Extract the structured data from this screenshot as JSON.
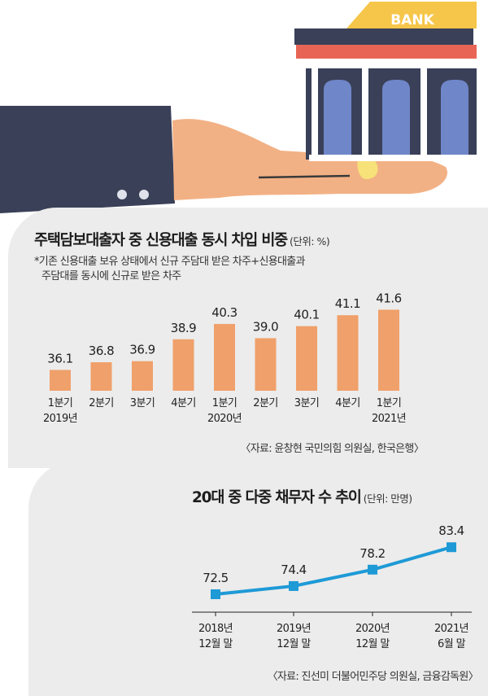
{
  "chart_data": [
    {
      "type": "bar",
      "title": "주택담보대출자 중 신용대출 동시 차입 비중",
      "unit": "(단위: %)",
      "note": [
        "*기존 신용대출 보유 상태에서 신규 주담대 받은 차주+신용대출과",
        "주담대를 동시에 신규로 받은 차주"
      ],
      "categories": [
        [
          "1분기",
          "2019년"
        ],
        [
          "2분기",
          ""
        ],
        [
          "3분기",
          ""
        ],
        [
          "4분기",
          ""
        ],
        [
          "1분기",
          "2020년"
        ],
        [
          "2분기",
          ""
        ],
        [
          "3분기",
          ""
        ],
        [
          "4분기",
          ""
        ],
        [
          "1분기",
          "2021년"
        ]
      ],
      "values": [
        36.1,
        36.8,
        36.9,
        38.9,
        40.3,
        39.0,
        40.1,
        41.1,
        41.6
      ],
      "value_labels": [
        "36.1",
        "36.8",
        "36.9",
        "38.9",
        "40.3",
        "39.0",
        "40.1",
        "41.1",
        "41.6"
      ],
      "source": "〈자료: 윤창현 국민의힘 의원실, 한국은행〉",
      "bar_color": "#f0a06a"
    },
    {
      "type": "line",
      "title": "20대 중 다중 채무자 수 추이",
      "unit": "(단위: 만명)",
      "categories": [
        [
          "2018년",
          "12월 말"
        ],
        [
          "2019년",
          "12월 말"
        ],
        [
          "2020년",
          "12월 말"
        ],
        [
          "2021년",
          "6월 말"
        ]
      ],
      "values": [
        72.5,
        74.4,
        78.2,
        83.4
      ],
      "value_labels": [
        "72.5",
        "74.4",
        "78.2",
        "83.4"
      ],
      "source": "〈자료: 진선미 더불어민주당 의원실, 금융감독원〉",
      "line_color": "#1e9ad6"
    }
  ],
  "illustration": {
    "bank_sign": "BANK"
  }
}
